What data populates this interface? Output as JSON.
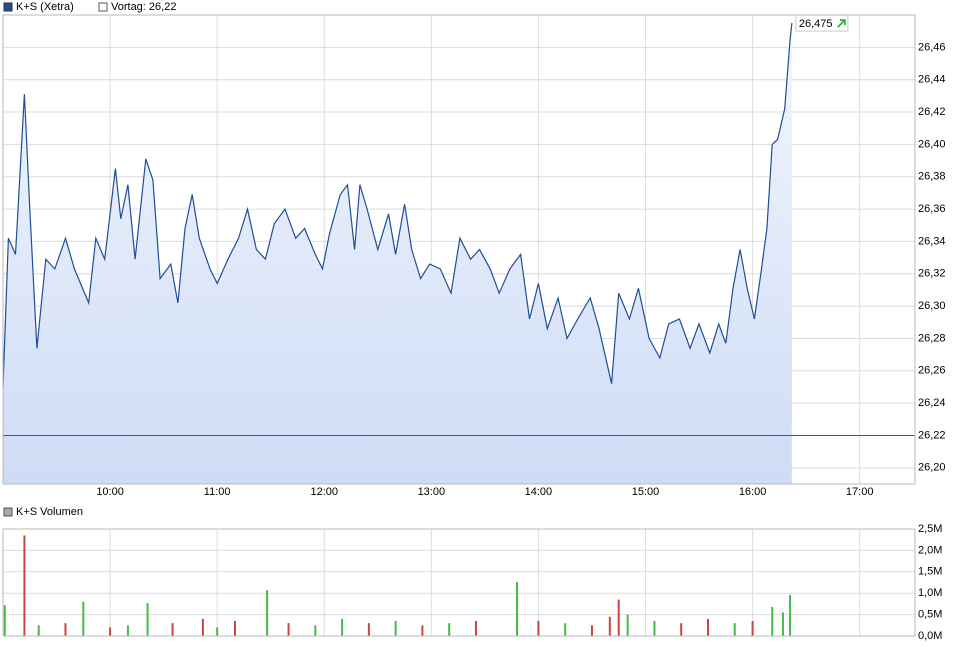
{
  "chart_data": [
    {
      "type": "line",
      "series": [
        {
          "name": "K+S (Xetra)",
          "color": "#1f4e96",
          "values": [
            26.25,
            26.342,
            26.332,
            26.431,
            26.36,
            26.274,
            26.329,
            26.323,
            26.342,
            26.323,
            26.302,
            26.342,
            26.329,
            26.385,
            26.354,
            26.375,
            26.329,
            26.391,
            26.378,
            26.317,
            26.326,
            26.302,
            26.348,
            26.369,
            26.342,
            26.323,
            26.314,
            26.329,
            26.342,
            26.36,
            26.335,
            26.329,
            26.351,
            26.36,
            26.342,
            26.348,
            26.332,
            26.323,
            26.345,
            26.369,
            26.375,
            26.335,
            26.375,
            26.36,
            26.335,
            26.357,
            26.332,
            26.363,
            26.335,
            26.317,
            26.326,
            26.323,
            26.308,
            26.342,
            26.329,
            26.335,
            26.323,
            26.308,
            26.323,
            26.332,
            26.292,
            26.314,
            26.286,
            26.305,
            26.28,
            26.292,
            26.305,
            26.286,
            26.252,
            26.308,
            26.292,
            26.311,
            26.28,
            26.268,
            26.289,
            26.292,
            26.274,
            26.289,
            26.271,
            26.289,
            26.277,
            26.311,
            26.335,
            26.311,
            26.292,
            26.323,
            26.348,
            26.4,
            26.403,
            26.422,
            26.465,
            26.475
          ]
        }
      ],
      "x": [
        "09:00",
        "09:03",
        "09:07",
        "09:12",
        "09:15",
        "09:19",
        "09:24",
        "09:29",
        "09:35",
        "09:40",
        "09:48",
        "09:52",
        "09:57",
        "10:03",
        "10:06",
        "10:10",
        "10:14",
        "10:20",
        "10:24",
        "10:28",
        "10:34",
        "10:38",
        "10:42",
        "10:46",
        "10:50",
        "10:56",
        "11:00",
        "11:06",
        "11:12",
        "11:17",
        "11:22",
        "11:27",
        "11:32",
        "11:38",
        "11:44",
        "11:49",
        "11:55",
        "11:59",
        "12:03",
        "12:09",
        "12:13",
        "12:17",
        "12:20",
        "12:24",
        "12:30",
        "12:36",
        "12:40",
        "12:45",
        "12:49",
        "12:54",
        "12:59",
        "13:05",
        "13:11",
        "13:16",
        "13:22",
        "13:27",
        "13:33",
        "13:38",
        "13:44",
        "13:50",
        "13:55",
        "14:00",
        "14:05",
        "14:11",
        "14:16",
        "14:22",
        "14:29",
        "14:34",
        "14:41",
        "14:45",
        "14:51",
        "14:56",
        "15:02",
        "15:08",
        "15:13",
        "15:19",
        "15:25",
        "15:30",
        "15:36",
        "15:41",
        "15:45",
        "15:49",
        "15:53",
        "15:57",
        "16:01",
        "16:05",
        "16:08",
        "16:11",
        "16:14",
        "16:18",
        "16:21",
        "16:22"
      ],
      "xlim": [
        "09:00",
        "17:31"
      ],
      "xticks": [
        "10:00",
        "11:00",
        "12:00",
        "13:00",
        "14:00",
        "15:00",
        "16:00",
        "17:00"
      ],
      "ylim": [
        26.19,
        26.48
      ],
      "yticks": [
        {
          "value": 26.2,
          "label": "26,20"
        },
        {
          "value": 26.22,
          "label": "26,22"
        },
        {
          "value": 26.24,
          "label": "26,24"
        },
        {
          "value": 26.26,
          "label": "26,26"
        },
        {
          "value": 26.28,
          "label": "26,28"
        },
        {
          "value": 26.3,
          "label": "26,30"
        },
        {
          "value": 26.32,
          "label": "26,32"
        },
        {
          "value": 26.34,
          "label": "26,34"
        },
        {
          "value": 26.36,
          "label": "26,36"
        },
        {
          "value": 26.38,
          "label": "26,38"
        },
        {
          "value": 26.4,
          "label": "26,40"
        },
        {
          "value": 26.42,
          "label": "26,42"
        },
        {
          "value": 26.44,
          "label": "26,44"
        },
        {
          "value": 26.46,
          "label": "26,46"
        }
      ],
      "grid": true,
      "reference_line": {
        "value": 26.22,
        "label": "Vortag: 26,22",
        "color": "#555555"
      },
      "last_label": {
        "value": 26.475,
        "label": "26,475"
      }
    },
    {
      "type": "bar",
      "title": "K+S Volumen",
      "x": [
        "09:01",
        "09:12",
        "09:20",
        "09:35",
        "09:45",
        "10:00",
        "10:10",
        "10:21",
        "10:35",
        "10:52",
        "11:00",
        "11:10",
        "11:28",
        "11:40",
        "11:55",
        "12:10",
        "12:25",
        "12:40",
        "12:55",
        "13:10",
        "13:25",
        "13:48",
        "14:00",
        "14:15",
        "14:30",
        "14:40",
        "14:45",
        "14:50",
        "15:05",
        "15:20",
        "15:35",
        "15:50",
        "16:00",
        "16:11",
        "16:17",
        "16:21"
      ],
      "values": [
        0.72,
        2.35,
        0.25,
        0.3,
        0.8,
        0.2,
        0.25,
        0.77,
        0.3,
        0.4,
        0.2,
        0.35,
        1.07,
        0.3,
        0.25,
        0.4,
        0.3,
        0.35,
        0.25,
        0.3,
        0.35,
        1.26,
        0.35,
        0.3,
        0.25,
        0.45,
        0.85,
        0.5,
        0.35,
        0.3,
        0.4,
        0.3,
        0.35,
        0.68,
        0.55,
        0.96
      ],
      "colors": [
        "#44bb44",
        "#cc4444",
        "#44bb44",
        "#cc4444",
        "#44bb44",
        "#cc4444",
        "#44bb44",
        "#44bb44",
        "#cc4444",
        "#cc4444",
        "#44bb44",
        "#cc4444",
        "#44bb44",
        "#cc4444",
        "#44bb44",
        "#44bb44",
        "#cc4444",
        "#44bb44",
        "#cc4444",
        "#44bb44",
        "#cc4444",
        "#44bb44",
        "#cc4444",
        "#44bb44",
        "#cc4444",
        "#cc4444",
        "#cc4444",
        "#44bb44",
        "#44bb44",
        "#cc4444",
        "#cc4444",
        "#44bb44",
        "#cc4444",
        "#44bb44",
        "#44bb44",
        "#44bb44"
      ],
      "xlim": [
        "09:00",
        "17:31"
      ],
      "ylim": [
        0,
        2.5
      ],
      "yticks": [
        {
          "value": 0,
          "label": "0,0M"
        },
        {
          "value": 0.5,
          "label": "0,5M"
        },
        {
          "value": 1,
          "label": "1,0M"
        },
        {
          "value": 1.5,
          "label": "1,5M"
        },
        {
          "value": 2,
          "label": "2,0M"
        },
        {
          "value": 2.5,
          "label": "2,5M"
        }
      ],
      "grid": true
    }
  ]
}
